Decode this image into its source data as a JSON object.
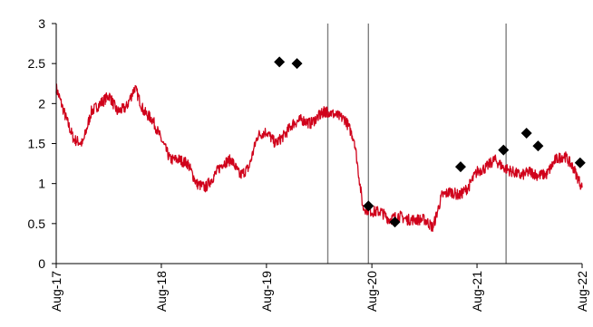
{
  "chart_data": {
    "type": "line",
    "title": "",
    "xlabel": "",
    "ylabel": "",
    "ylim": [
      0,
      3
    ],
    "xlim": [
      "2017-08-01",
      "2022-08-01"
    ],
    "y_ticks": [
      0,
      0.5,
      1,
      1.5,
      2,
      2.5,
      3
    ],
    "y_tick_labels": [
      "0",
      "0.5",
      "1",
      "1.5",
      "2",
      "2.5",
      "3"
    ],
    "x_ticks": [
      "2017-08-01",
      "2018-08-01",
      "2019-08-01",
      "2020-08-01",
      "2021-08-01",
      "2022-08-01"
    ],
    "x_tick_labels": [
      "Aug-17",
      "Aug-18",
      "Aug-19",
      "Aug-20",
      "Aug-21",
      "Aug-22"
    ],
    "grid": false,
    "legend": "none",
    "series": [
      {
        "kind": "line",
        "color": "#d0021b",
        "x": [
          "2017-08-01",
          "2017-09-01",
          "2017-10-01",
          "2017-11-01",
          "2017-12-01",
          "2018-01-01",
          "2018-02-01",
          "2018-03-01",
          "2018-04-01",
          "2018-05-01",
          "2018-06-01",
          "2018-07-01",
          "2018-08-01",
          "2018-09-01",
          "2018-10-01",
          "2018-11-01",
          "2018-12-01",
          "2019-01-01",
          "2019-02-01",
          "2019-03-01",
          "2019-04-01",
          "2019-05-01",
          "2019-06-01",
          "2019-07-01",
          "2019-08-01",
          "2019-09-01",
          "2019-10-01",
          "2019-11-01",
          "2019-12-01",
          "2020-01-01",
          "2020-02-01",
          "2020-02-20",
          "2020-03-01",
          "2020-04-01",
          "2020-05-01",
          "2020-06-01",
          "2020-07-01",
          "2020-08-01",
          "2020-09-01",
          "2020-10-01",
          "2020-11-01",
          "2020-12-01",
          "2021-01-01",
          "2021-02-01",
          "2021-03-01",
          "2021-04-01",
          "2021-05-01",
          "2021-06-01",
          "2021-07-01",
          "2021-08-01",
          "2021-09-01",
          "2021-10-01",
          "2021-11-01",
          "2021-12-01",
          "2022-01-01",
          "2022-02-01",
          "2022-03-01",
          "2022-04-01",
          "2022-05-01",
          "2022-06-01",
          "2022-07-01",
          "2022-08-01"
        ],
        "y": [
          2.2,
          1.85,
          1.55,
          1.5,
          1.9,
          2.0,
          2.1,
          1.9,
          1.95,
          2.2,
          1.9,
          1.8,
          1.55,
          1.3,
          1.3,
          1.25,
          1.0,
          0.95,
          1.1,
          1.25,
          1.3,
          1.1,
          1.2,
          1.6,
          1.65,
          1.5,
          1.6,
          1.75,
          1.8,
          1.75,
          1.85,
          1.9,
          1.9,
          1.85,
          1.8,
          1.55,
          0.7,
          0.65,
          0.65,
          0.55,
          0.6,
          0.55,
          0.55,
          0.55,
          0.45,
          0.85,
          0.9,
          0.85,
          0.95,
          1.15,
          1.2,
          1.3,
          1.2,
          1.15,
          1.1,
          1.15,
          1.1,
          1.12,
          1.3,
          1.35,
          1.2,
          0.95
        ]
      },
      {
        "kind": "markers",
        "marker": "diamond",
        "color": "#000000",
        "x": [
          "2019-09-15",
          "2019-11-15",
          "2020-07-20",
          "2020-10-20",
          "2021-06-05",
          "2021-11-01",
          "2022-01-20",
          "2022-03-01",
          "2022-07-25"
        ],
        "y": [
          2.52,
          2.5,
          0.72,
          0.52,
          1.21,
          1.42,
          1.63,
          1.47,
          1.26
        ]
      }
    ],
    "vertical_lines": [
      {
        "x": "2020-03-01",
        "color": "#808080"
      },
      {
        "x": "2020-07-20",
        "color": "#808080"
      },
      {
        "x": "2021-11-10",
        "color": "#808080"
      }
    ]
  }
}
